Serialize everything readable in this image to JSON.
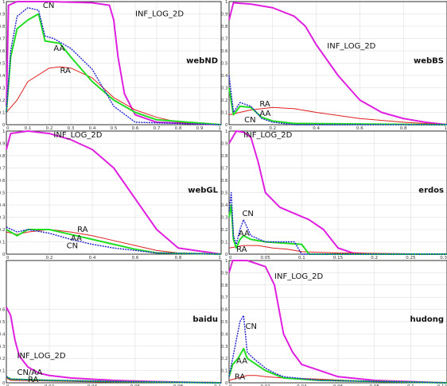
{
  "colors": {
    "INF_LOG_2D": "#e020e0",
    "CN": "#1f1fd0",
    "AA": "#22dd22",
    "RA": "#e02020",
    "grid": "#d8d8d8",
    "axis": "#000000"
  },
  "chart_data": [
    {
      "type": "line",
      "title": "webND",
      "xlim": [
        0,
        1
      ],
      "ylim": [
        0,
        1
      ],
      "xticks": [
        "0",
        "0.1",
        "0.2",
        "0.3",
        "0.4",
        "0.5",
        "0.6",
        "0.7",
        "0.8",
        "0.9",
        "1"
      ],
      "yticks": [
        "0",
        "0.1",
        "0.2",
        "0.3",
        "0.4",
        "0.5",
        "0.6",
        "0.7",
        "0.8",
        "0.9",
        "1"
      ],
      "grid": true,
      "series": [
        {
          "name": "INF_LOG_2D",
          "x": [
            0,
            0.01,
            0.05,
            0.2,
            0.4,
            0.48,
            0.5,
            0.52,
            0.55,
            0.6,
            0.7,
            1.0
          ],
          "y": [
            0.15,
            0.97,
            1.0,
            1.0,
            0.99,
            0.97,
            0.85,
            0.55,
            0.25,
            0.08,
            0.02,
            0.0
          ]
        },
        {
          "name": "CN",
          "x": [
            0,
            0.02,
            0.05,
            0.1,
            0.15,
            0.18,
            0.22,
            0.3,
            0.4,
            0.45,
            0.5,
            0.6,
            1.0
          ],
          "y": [
            0.1,
            0.6,
            0.88,
            0.95,
            0.93,
            0.72,
            0.7,
            0.62,
            0.45,
            0.3,
            0.15,
            0.02,
            0.0
          ]
        },
        {
          "name": "AA",
          "x": [
            0,
            0.02,
            0.05,
            0.1,
            0.15,
            0.18,
            0.25,
            0.3,
            0.4,
            0.5,
            0.6,
            0.7,
            1.0
          ],
          "y": [
            0.1,
            0.55,
            0.78,
            0.85,
            0.9,
            0.68,
            0.66,
            0.55,
            0.35,
            0.2,
            0.1,
            0.04,
            0.0
          ]
        },
        {
          "name": "RA",
          "x": [
            0,
            0.05,
            0.1,
            0.2,
            0.25,
            0.3,
            0.4,
            0.5,
            0.6,
            0.7,
            0.8,
            1.0
          ],
          "y": [
            0.1,
            0.2,
            0.35,
            0.46,
            0.47,
            0.46,
            0.38,
            0.22,
            0.12,
            0.06,
            0.02,
            0.0
          ]
        }
      ],
      "annotations": [
        {
          "text": "CN",
          "x": 0.17,
          "y": 0.95
        },
        {
          "text": "INF_LOG_2D",
          "x": 0.6,
          "y": 0.88
        },
        {
          "text": "AA",
          "x": 0.22,
          "y": 0.6
        },
        {
          "text": "RA",
          "x": 0.25,
          "y": 0.42
        }
      ]
    },
    {
      "type": "line",
      "title": "webBS",
      "xlim": [
        0,
        1
      ],
      "ylim": [
        0,
        1
      ],
      "xticks": [
        "0",
        "0.2",
        "0.4",
        "0.6",
        "0.8",
        "1"
      ],
      "yticks": [
        "0",
        "0.1",
        "0.2",
        "0.3",
        "0.4",
        "0.5",
        "0.6",
        "0.7",
        "0.8",
        "0.9",
        "1"
      ],
      "grid": true,
      "series": [
        {
          "name": "INF_LOG_2D",
          "x": [
            0,
            0.02,
            0.1,
            0.2,
            0.3,
            0.35,
            0.4,
            0.5,
            0.6,
            0.7,
            0.8,
            0.9,
            1.0
          ],
          "y": [
            0.85,
            0.99,
            0.98,
            0.95,
            0.88,
            0.8,
            0.65,
            0.4,
            0.2,
            0.1,
            0.05,
            0.02,
            0.0
          ]
        },
        {
          "name": "CN",
          "x": [
            0,
            0.02,
            0.05,
            0.1,
            0.15,
            0.2,
            0.3,
            1.0
          ],
          "y": [
            0.4,
            0.1,
            0.18,
            0.15,
            0.05,
            0.02,
            0.0,
            0.0
          ]
        },
        {
          "name": "AA",
          "x": [
            0,
            0.02,
            0.05,
            0.1,
            0.15,
            0.2,
            0.3,
            1.0
          ],
          "y": [
            0.3,
            0.08,
            0.15,
            0.14,
            0.06,
            0.03,
            0.01,
            0.0
          ]
        },
        {
          "name": "RA",
          "x": [
            0,
            0.05,
            0.1,
            0.2,
            0.3,
            0.4,
            0.6,
            0.8,
            1.0
          ],
          "y": [
            0.08,
            0.1,
            0.12,
            0.14,
            0.13,
            0.1,
            0.05,
            0.02,
            0.0
          ]
        }
      ],
      "annotations": [
        {
          "text": "INF_LOG_2D",
          "x": 0.45,
          "y": 0.62
        },
        {
          "text": "RA",
          "x": 0.14,
          "y": 0.15
        },
        {
          "text": "AA",
          "x": 0.14,
          "y": 0.07
        },
        {
          "text": "CN",
          "x": 0.07,
          "y": 0.02
        }
      ]
    },
    {
      "type": "line",
      "title": "webGL",
      "xlim": [
        0,
        1
      ],
      "ylim": [
        0,
        1
      ],
      "xticks": [
        "0",
        "0.2",
        "0.4",
        "0.6",
        "0.8",
        "1"
      ],
      "yticks": [
        "0",
        "0.1",
        "0.2",
        "0.3",
        "0.4",
        "0.5",
        "0.6",
        "0.7",
        "0.8",
        "0.9",
        "1"
      ],
      "grid": true,
      "series": [
        {
          "name": "INF_LOG_2D",
          "x": [
            0,
            0.02,
            0.1,
            0.2,
            0.3,
            0.4,
            0.5,
            0.6,
            0.7,
            0.8,
            1.0
          ],
          "y": [
            0.85,
            0.98,
            1.0,
            0.98,
            0.93,
            0.85,
            0.7,
            0.45,
            0.2,
            0.05,
            0.0
          ]
        },
        {
          "name": "CN",
          "x": [
            0,
            0.05,
            0.1,
            0.2,
            0.3,
            0.4,
            0.5,
            0.6,
            0.7,
            1.0
          ],
          "y": [
            0.22,
            0.18,
            0.2,
            0.17,
            0.12,
            0.08,
            0.05,
            0.03,
            0.01,
            0.0
          ]
        },
        {
          "name": "AA",
          "x": [
            0,
            0.05,
            0.1,
            0.2,
            0.3,
            0.4,
            0.5,
            0.6,
            0.7,
            1.0
          ],
          "y": [
            0.2,
            0.15,
            0.2,
            0.2,
            0.16,
            0.12,
            0.08,
            0.04,
            0.01,
            0.0
          ]
        },
        {
          "name": "RA",
          "x": [
            0,
            0.05,
            0.1,
            0.2,
            0.3,
            0.4,
            0.5,
            0.6,
            0.7,
            0.8,
            1.0
          ],
          "y": [
            0.18,
            0.16,
            0.18,
            0.2,
            0.18,
            0.15,
            0.11,
            0.07,
            0.03,
            0.01,
            0.0
          ]
        }
      ],
      "annotations": [
        {
          "text": "INF_LOG_2D",
          "x": 0.22,
          "y": 0.95
        },
        {
          "text": "RA",
          "x": 0.33,
          "y": 0.18
        },
        {
          "text": "AA",
          "x": 0.3,
          "y": 0.11
        },
        {
          "text": "CN",
          "x": 0.28,
          "y": 0.05
        }
      ]
    },
    {
      "type": "line",
      "title": "erdos",
      "xlim": [
        0,
        0.3
      ],
      "ylim": [
        0,
        1
      ],
      "xticks": [
        "0",
        "0.05",
        "0.1",
        "0.15",
        "0.2",
        "0.25",
        "0.3"
      ],
      "yticks": [
        "0",
        "0.1",
        "0.2",
        "0.3",
        "0.4",
        "0.5",
        "0.6",
        "0.7",
        "0.8",
        "0.9",
        "1"
      ],
      "grid": true,
      "series": [
        {
          "name": "INF_LOG_2D",
          "x": [
            0,
            0.01,
            0.02,
            0.03,
            0.04,
            0.05,
            0.07,
            0.09,
            0.11,
            0.13,
            0.15,
            0.17,
            0.2,
            0.3
          ],
          "y": [
            0.9,
            1.0,
            0.99,
            0.95,
            0.75,
            0.5,
            0.38,
            0.33,
            0.28,
            0.2,
            0.05,
            0.01,
            0.0,
            0.0
          ]
        },
        {
          "name": "CN",
          "x": [
            0,
            0.003,
            0.006,
            0.01,
            0.015,
            0.02,
            0.03,
            0.05,
            0.09,
            0.1,
            0.12,
            0.3
          ],
          "y": [
            0.35,
            0.5,
            0.15,
            0.08,
            0.2,
            0.28,
            0.15,
            0.1,
            0.1,
            0.0,
            0.0,
            0.0
          ]
        },
        {
          "name": "AA",
          "x": [
            0,
            0.003,
            0.006,
            0.01,
            0.015,
            0.02,
            0.03,
            0.05,
            0.1,
            0.11,
            0.12,
            0.3
          ],
          "y": [
            0.3,
            0.4,
            0.12,
            0.05,
            0.12,
            0.15,
            0.12,
            0.1,
            0.08,
            0.0,
            0.0,
            0.0
          ]
        },
        {
          "name": "RA",
          "x": [
            0,
            0.01,
            0.02,
            0.04,
            0.06,
            0.08,
            0.1,
            0.15,
            0.3
          ],
          "y": [
            0.05,
            0.06,
            0.07,
            0.07,
            0.05,
            0.04,
            0.02,
            0.01,
            0.0
          ]
        }
      ],
      "annotations": [
        {
          "text": "INF_LOG_2D",
          "x": 0.02,
          "y": 0.95
        },
        {
          "text": "CN",
          "x": 0.018,
          "y": 0.31
        },
        {
          "text": "AA",
          "x": 0.013,
          "y": 0.15
        },
        {
          "text": "RA",
          "x": 0.01,
          "y": 0.02
        }
      ]
    },
    {
      "type": "line",
      "title": "baidu",
      "xlim": [
        0,
        0.1
      ],
      "ylim": [
        0,
        1
      ],
      "xticks": [
        "0",
        "0.02",
        "0.04",
        "0.06",
        "0.08",
        "0.1"
      ],
      "yticks": [
        "0",
        "0.1",
        "0.2",
        "0.3",
        "0.4",
        "0.5",
        "0.6"
      ],
      "grid": true,
      "series": [
        {
          "name": "INF_LOG_2D",
          "x": [
            0,
            0.002,
            0.004,
            0.006,
            0.01,
            0.015,
            0.02,
            0.03,
            0.05,
            0.07,
            0.1
          ],
          "y": [
            0.62,
            0.55,
            0.35,
            0.22,
            0.13,
            0.08,
            0.06,
            0.04,
            0.02,
            0.01,
            0.0
          ]
        },
        {
          "name": "CN",
          "x": [
            0,
            0.002,
            0.02,
            0.05,
            0.1
          ],
          "y": [
            0.05,
            0.03,
            0.02,
            0.01,
            0.0
          ]
        },
        {
          "name": "AA",
          "x": [
            0,
            0.002,
            0.02,
            0.05,
            0.1
          ],
          "y": [
            0.05,
            0.03,
            0.02,
            0.01,
            0.0
          ]
        },
        {
          "name": "RA",
          "x": [
            0,
            0.002,
            0.02,
            0.05,
            0.1
          ],
          "y": [
            0.04,
            0.02,
            0.015,
            0.005,
            0.0
          ]
        }
      ],
      "annotations": [
        {
          "text": "INF_LOG_2D",
          "x": 0.005,
          "y": 0.2
        },
        {
          "text": "CN/AA",
          "x": 0.005,
          "y": 0.065
        },
        {
          "text": "RA",
          "x": 0.01,
          "y": 0.005
        }
      ]
    },
    {
      "type": "line",
      "title": "hudong",
      "xlim": [
        0,
        0.12
      ],
      "ylim": [
        0,
        1
      ],
      "xticks": [
        "0",
        "0.02",
        "0.04",
        "0.06",
        "0.08",
        "0.1",
        "0.12"
      ],
      "yticks": [
        "0",
        "0.1",
        "0.2",
        "0.3",
        "0.4",
        "0.5",
        "0.6",
        "0.7",
        "0.8",
        "0.9",
        "1"
      ],
      "grid": true,
      "series": [
        {
          "name": "INF_LOG_2D",
          "x": [
            0,
            0.002,
            0.01,
            0.02,
            0.025,
            0.03,
            0.035,
            0.04,
            0.05,
            0.06,
            0.08,
            0.1,
            0.12
          ],
          "y": [
            0.9,
            1.0,
            1.0,
            0.95,
            0.8,
            0.4,
            0.25,
            0.15,
            0.1,
            0.05,
            0.02,
            0.01,
            0.0
          ]
        },
        {
          "name": "CN",
          "x": [
            0,
            0.002,
            0.004,
            0.006,
            0.008,
            0.01,
            0.012,
            0.015,
            0.02,
            0.025,
            0.03,
            0.05,
            0.12
          ],
          "y": [
            0.05,
            0.2,
            0.35,
            0.5,
            0.55,
            0.25,
            0.22,
            0.18,
            0.12,
            0.08,
            0.05,
            0.02,
            0.0
          ]
        },
        {
          "name": "AA",
          "x": [
            0,
            0.002,
            0.005,
            0.008,
            0.01,
            0.012,
            0.015,
            0.02,
            0.025,
            0.03,
            0.05,
            0.12
          ],
          "y": [
            0.05,
            0.15,
            0.2,
            0.28,
            0.2,
            0.18,
            0.15,
            0.1,
            0.07,
            0.04,
            0.02,
            0.0
          ]
        },
        {
          "name": "RA",
          "x": [
            0,
            0.005,
            0.01,
            0.015,
            0.02,
            0.03,
            0.05,
            0.08,
            0.12
          ],
          "y": [
            0.02,
            0.04,
            0.06,
            0.06,
            0.05,
            0.04,
            0.03,
            0.01,
            0.0
          ]
        }
      ],
      "annotations": [
        {
          "text": "INF_LOG_2D",
          "x": 0.025,
          "y": 0.85
        },
        {
          "text": "CN",
          "x": 0.009,
          "y": 0.44
        },
        {
          "text": "AA",
          "x": 0.004,
          "y": 0.16
        },
        {
          "text": "RA",
          "x": 0.003,
          "y": 0.03
        }
      ]
    }
  ]
}
